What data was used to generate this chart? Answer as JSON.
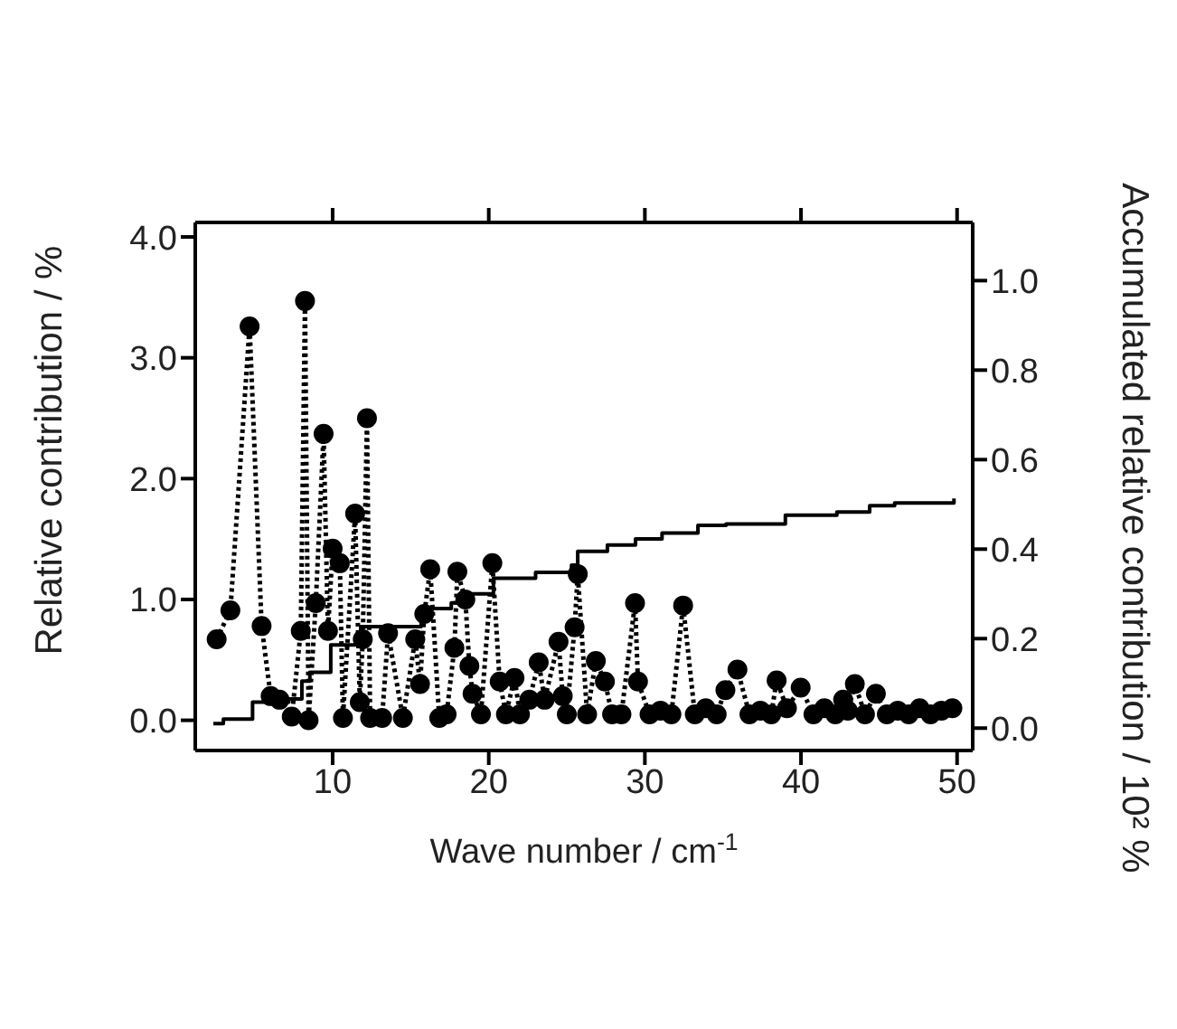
{
  "chart_data": {
    "type": "line",
    "xlabel": "Wave number /  cm$^{-1}$",
    "ylabel": "Relative contribution / %",
    "y2label": "Accumulated relative contribution / 10² %",
    "xlim": [
      1.2,
      51
    ],
    "xticks": [
      10,
      20,
      30,
      40,
      50
    ],
    "ylim": [
      -0.25,
      4.12
    ],
    "yticks": [
      {
        "value": 0,
        "label": "0.0"
      },
      {
        "value": 1,
        "label": "1.0"
      },
      {
        "value": 2,
        "label": "2.0"
      },
      {
        "value": 3,
        "label": "3.0"
      },
      {
        "value": 4,
        "label": "4.0"
      }
    ],
    "y2lim": [
      -0.05,
      1.13
    ],
    "y2ticks": [
      {
        "value": 0,
        "label": "0.0"
      },
      {
        "value": 0.2,
        "label": "0.2"
      },
      {
        "value": 0.4,
        "label": "0.4"
      },
      {
        "value": 0.6,
        "label": "0.6"
      },
      {
        "value": 0.8,
        "label": "0.8"
      },
      {
        "value": 1,
        "label": "1.0"
      }
    ],
    "series": [
      {
        "type": "line",
        "color": "#000000",
        "marker": "circle",
        "line_style": "dotted",
        "x": [
          2.57,
          3.45,
          4.68,
          5.45,
          6.03,
          6.6,
          7.38,
          7.96,
          8.23,
          8.46,
          8.92,
          9.42,
          9.7,
          10.0,
          10.46,
          10.66,
          11.44,
          11.74,
          11.93,
          12.2,
          12.4,
          13.17,
          13.55,
          14.5,
          15.29,
          15.6,
          15.87,
          16.25,
          16.83,
          17.3,
          17.8,
          17.99,
          18.5,
          18.76,
          18.96,
          19.5,
          20.23,
          20.7,
          21.1,
          21.65,
          22.0,
          22.6,
          23.2,
          23.58,
          24.47,
          24.74,
          25.0,
          25.5,
          25.7,
          26.3,
          26.86,
          27.44,
          27.9,
          28.5,
          29.37,
          29.56,
          30.3,
          31.0,
          31.7,
          32.45,
          33.2,
          33.9,
          34.6,
          35.16,
          35.93,
          36.7,
          37.4,
          38.1,
          38.44,
          39.1,
          39.98,
          40.8,
          41.5,
          42.2,
          42.7,
          43.0,
          43.45,
          44.1,
          44.8,
          45.5,
          46.2,
          46.9,
          47.6,
          48.3,
          49.0,
          49.7
        ],
        "values": [
          0.67,
          0.91,
          3.26,
          0.78,
          0.2,
          0.17,
          0.03,
          0.74,
          3.47,
          0.0,
          0.97,
          2.37,
          0.74,
          1.42,
          1.3,
          0.02,
          1.71,
          0.15,
          0.67,
          2.5,
          0.02,
          0.02,
          0.72,
          0.02,
          0.67,
          0.3,
          0.88,
          1.25,
          0.02,
          0.05,
          0.6,
          1.23,
          1.0,
          0.45,
          0.22,
          0.05,
          1.3,
          0.32,
          0.05,
          0.35,
          0.05,
          0.17,
          0.48,
          0.17,
          0.65,
          0.2,
          0.05,
          0.77,
          1.21,
          0.05,
          0.49,
          0.32,
          0.05,
          0.05,
          0.97,
          0.32,
          0.05,
          0.08,
          0.05,
          0.95,
          0.05,
          0.1,
          0.05,
          0.25,
          0.42,
          0.05,
          0.08,
          0.05,
          0.33,
          0.1,
          0.27,
          0.05,
          0.1,
          0.05,
          0.17,
          0.08,
          0.3,
          0.05,
          0.22,
          0.05,
          0.08,
          0.05,
          0.1,
          0.05,
          0.08,
          0.1
        ]
      },
      {
        "type": "step",
        "axis": "y2",
        "color": "#000000",
        "marker": "none",
        "line_style": "solid",
        "x": [
          2.36,
          3.0,
          4.87,
          7.19,
          8.03,
          8.54,
          9.88,
          11.8,
          15.67,
          16.05,
          17.6,
          18.38,
          20.3,
          23.0,
          25.3,
          25.7,
          27.6,
          29.4,
          31.1,
          33.4,
          35.2,
          39.0,
          42.3,
          44.4,
          46.0,
          49.8
        ],
        "values": [
          0.01,
          0.02,
          0.058,
          0.065,
          0.105,
          0.125,
          0.186,
          0.227,
          0.243,
          0.267,
          0.28,
          0.3,
          0.335,
          0.348,
          0.364,
          0.395,
          0.409,
          0.423,
          0.436,
          0.453,
          0.456,
          0.476,
          0.483,
          0.497,
          0.503,
          0.513
        ]
      }
    ]
  }
}
